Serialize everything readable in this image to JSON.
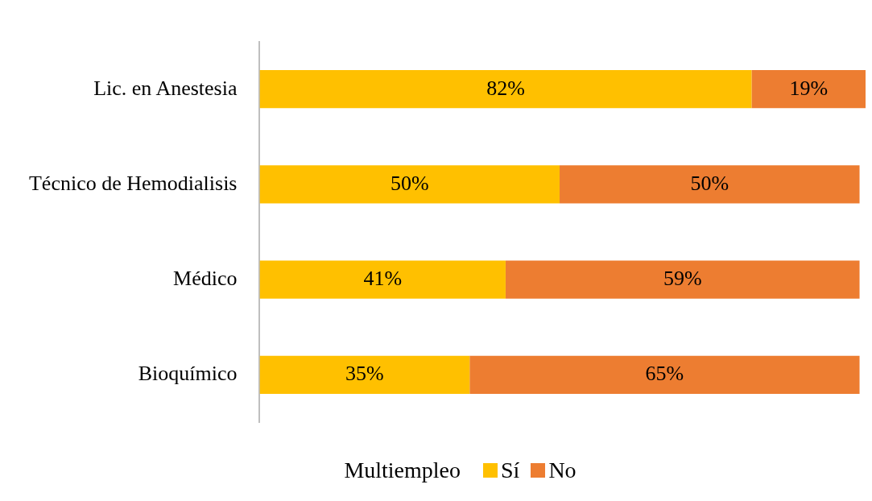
{
  "chart_data": {
    "type": "bar",
    "orientation": "horizontal",
    "stacked": true,
    "categories": [
      "Lic. en Anestesia",
      "Técnico de Hemodialisis",
      "Médico",
      "Bioquímico"
    ],
    "series": [
      {
        "name": "Sí",
        "color": "#ffc000",
        "values": [
          82,
          50,
          41,
          35
        ],
        "value_labels": [
          "82%",
          "50%",
          "41%",
          "35%"
        ]
      },
      {
        "name": "No",
        "color": "#ed7d31",
        "values": [
          19,
          50,
          59,
          65
        ],
        "value_labels": [
          "19%",
          "50%",
          "59%",
          "65%"
        ]
      }
    ],
    "legend": "bottom",
    "legend_title": "Multiempleo",
    "tick_labels": "y"
  }
}
